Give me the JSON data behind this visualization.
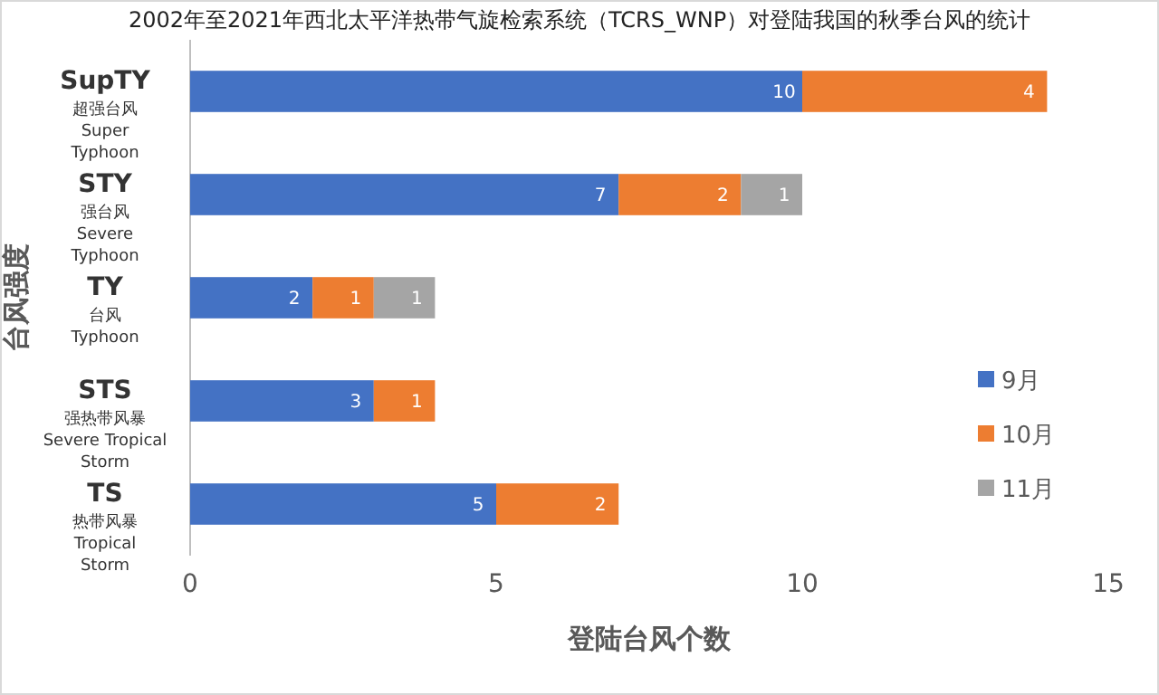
{
  "chart_data": {
    "type": "bar",
    "orientation": "horizontal",
    "stacked": true,
    "title": "2002年至2021年西北太平洋热带气旋检索系统（TCRS_WNP）对登陆我国的秋季台风的统计",
    "xlabel": "登陆台风个数",
    "ylabel": "台风强度",
    "categories": [
      "SupTY\n超强台风\nSuper\nTyphoon",
      "STY\n强台风\nSevere\nTyphoon",
      "TY\n台风\nTyphoon",
      "STS\n强热带风暴\nSevere Tropical\nStorm",
      "TS\n热带风暴\nTropical\nStorm"
    ],
    "series": [
      {
        "name": "9月",
        "color": "#4472c4",
        "values": [
          10,
          7,
          2,
          3,
          5
        ]
      },
      {
        "name": "10月",
        "color": "#ed7d31",
        "values": [
          4,
          2,
          1,
          1,
          2
        ]
      },
      {
        "name": "11月",
        "color": "#a5a5a5",
        "values": [
          null,
          1,
          1,
          null,
          null
        ]
      }
    ],
    "xlim": [
      0,
      15
    ],
    "xticks": [
      0,
      5,
      10,
      15
    ],
    "grid": false,
    "legend": "right",
    "data_labels": true
  }
}
